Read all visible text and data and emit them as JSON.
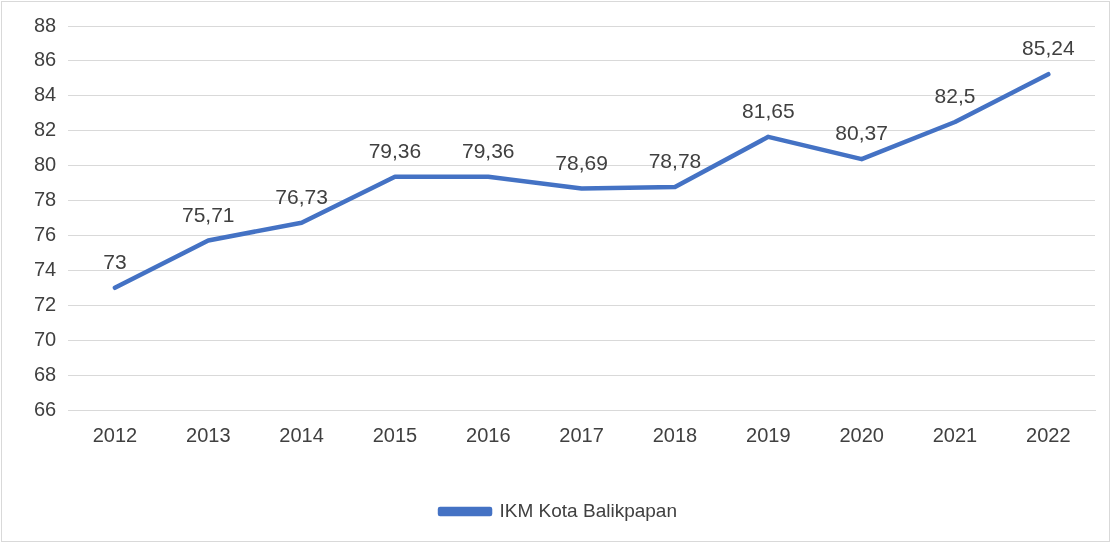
{
  "chart_data": {
    "type": "line",
    "categories": [
      "2012",
      "2013",
      "2014",
      "2015",
      "2016",
      "2017",
      "2018",
      "2019",
      "2020",
      "2021",
      "2022"
    ],
    "series": [
      {
        "name": "IKM Kota Balikpapan",
        "color": "#4472c4",
        "values": [
          73,
          75.71,
          76.73,
          79.36,
          79.36,
          78.69,
          78.78,
          81.65,
          80.37,
          82.5,
          85.24
        ],
        "value_labels": [
          "73",
          "75,71",
          "76,73",
          "79,36",
          "79,36",
          "78,69",
          "78,78",
          "81,65",
          "80,37",
          "82,5",
          "85,24"
        ]
      }
    ],
    "ylim": [
      66,
      88
    ],
    "yticks": [
      66,
      68,
      70,
      72,
      74,
      76,
      78,
      80,
      82,
      84,
      86,
      88
    ],
    "grid": "y",
    "legend": "bottom",
    "marker": "none",
    "line_style": "solid"
  }
}
